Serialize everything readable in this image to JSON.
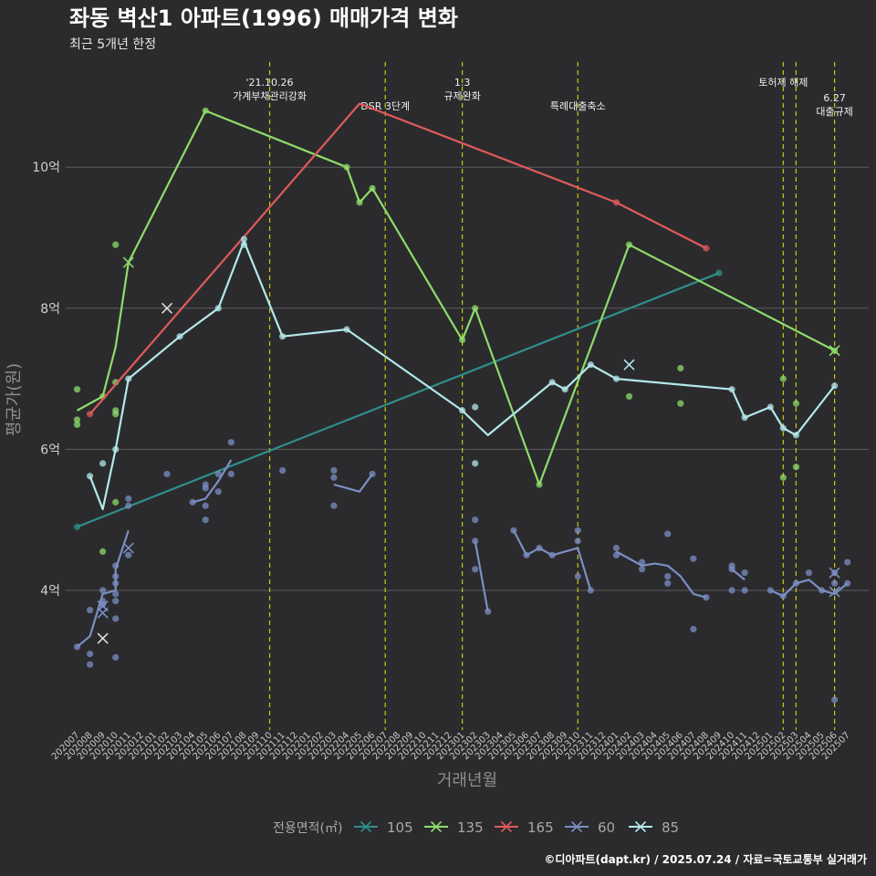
{
  "chart_data": {
    "type": "line",
    "title": "좌동 벽산1 아파트(1996) 매매가격 변화",
    "subtitle": "최근 5개년 한정",
    "xlabel": "거래년월",
    "ylabel": "평균가(원)",
    "caption": "©디아파트(dapt.kr) / 2025.07.24 / 자료=국토교통부 실거래가",
    "legend_title": "전용면적(㎡)",
    "legend_position": "bottom",
    "grid": true,
    "ylim": [
      2.0,
      11.5
    ],
    "yticks": [
      4,
      6,
      8,
      10
    ],
    "ytick_labels": [
      "4억",
      "6억",
      "8억",
      "10억"
    ],
    "categories": [
      "202007",
      "202008",
      "202009",
      "202010",
      "202011",
      "202012",
      "202101",
      "202102",
      "202103",
      "202104",
      "202105",
      "202106",
      "202107",
      "202108",
      "202109",
      "202110",
      "202111",
      "202112",
      "202201",
      "202202",
      "202203",
      "202204",
      "202205",
      "202206",
      "202207",
      "202208",
      "202209",
      "202210",
      "202211",
      "202212",
      "202301",
      "202302",
      "202303",
      "202304",
      "202305",
      "202306",
      "202307",
      "202308",
      "202309",
      "202310",
      "202311",
      "202312",
      "202401",
      "202402",
      "202403",
      "202404",
      "202405",
      "202406",
      "202407",
      "202408",
      "202409",
      "202410",
      "202411",
      "202412",
      "202501",
      "202502",
      "202503",
      "202504",
      "202505",
      "202506",
      "202507"
    ],
    "events": [
      {
        "x": "202110",
        "label": [
          "'21.10.26",
          "가계부채관리강화"
        ],
        "row": 0
      },
      {
        "x": "202207",
        "label": [
          "DSR 3단계"
        ],
        "row": 1
      },
      {
        "x": "202301",
        "label": [
          "1.3",
          "규제완화"
        ],
        "row": 0
      },
      {
        "x": "202310",
        "label": [
          "특례대출축소"
        ],
        "row": 1
      },
      {
        "x": "202502",
        "label": [
          "토허제 해제"
        ],
        "row": 0
      },
      {
        "x": "202503",
        "label": [],
        "row": 0
      },
      {
        "x": "202506",
        "label": [
          "6.27",
          "대출규제"
        ],
        "row": 2
      }
    ],
    "series": [
      {
        "name": "105",
        "color": "#2f8f8a",
        "line": [
          [
            "202007",
            4.9
          ],
          [
            "202409",
            8.5
          ]
        ],
        "points": [
          [
            "202007",
            4.9
          ],
          [
            "202409",
            8.5
          ]
        ],
        "crosses": []
      },
      {
        "name": "135",
        "color": "#8fdc6a",
        "line": [
          [
            "202007",
            6.55
          ],
          [
            "202009",
            6.75
          ],
          [
            "202010",
            7.45
          ],
          [
            "202011",
            8.65
          ],
          [
            "202105",
            10.8
          ],
          [
            "202204",
            10.0
          ],
          [
            "202205",
            9.5
          ],
          [
            "202206",
            9.7
          ],
          [
            "202301",
            7.55
          ],
          [
            "202302",
            8.0
          ],
          [
            "202307",
            5.5
          ],
          [
            "202402",
            8.9
          ],
          [
            "202506",
            7.4
          ]
        ],
        "points": [
          [
            "202007",
            6.85
          ],
          [
            "202007",
            6.42
          ],
          [
            "202007",
            6.35
          ],
          [
            "202009",
            6.75
          ],
          [
            "202010",
            8.9
          ],
          [
            "202010",
            6.95
          ],
          [
            "202010",
            6.55
          ],
          [
            "202010",
            6.5
          ],
          [
            "202009",
            4.55
          ],
          [
            "202105",
            10.8
          ],
          [
            "202204",
            10.0
          ],
          [
            "202205",
            9.5
          ],
          [
            "202206",
            9.7
          ],
          [
            "202301",
            7.55
          ],
          [
            "202302",
            8.0
          ],
          [
            "202307",
            5.5
          ],
          [
            "202402",
            8.9
          ],
          [
            "202402",
            6.75
          ],
          [
            "202406",
            7.15
          ],
          [
            "202406",
            6.65
          ],
          [
            "202502",
            7.0
          ],
          [
            "202502",
            5.6
          ],
          [
            "202503",
            6.65
          ],
          [
            "202503",
            5.75
          ],
          [
            "202506",
            7.4
          ],
          [
            "202010",
            5.25
          ]
        ],
        "crosses": [
          [
            "202011",
            8.65
          ],
          [
            "202506",
            7.4
          ]
        ]
      },
      {
        "name": "165",
        "color": "#e05a5a",
        "line": [
          [
            "202008",
            6.5
          ],
          [
            "202205",
            10.9
          ],
          [
            "202401",
            9.5
          ],
          [
            "202408",
            8.85
          ]
        ],
        "points": [
          [
            "202008",
            6.5
          ],
          [
            "202401",
            9.5
          ],
          [
            "202408",
            8.85
          ]
        ],
        "crosses": []
      },
      {
        "name": "60",
        "color": "#7b8fc4",
        "segments": [
          [
            [
              "202007",
              3.2
            ],
            [
              "202008",
              3.35
            ],
            [
              "202009",
              3.95
            ],
            [
              "202010",
              4.0
            ],
            [
              "202010",
              4.3
            ],
            [
              "202011",
              4.85
            ]
          ],
          [
            [
              "202104",
              5.25
            ],
            [
              "202105",
              5.3
            ],
            [
              "202106",
              5.55
            ],
            [
              "202107",
              5.85
            ]
          ],
          [
            [
              "202203",
              5.5
            ],
            [
              "202205",
              5.4
            ],
            [
              "202206",
              5.65
            ]
          ],
          [
            [
              "202302",
              4.7
            ],
            [
              "202303",
              3.7
            ]
          ],
          [
            [
              "202305",
              4.85
            ],
            [
              "202306",
              4.5
            ],
            [
              "202307",
              4.6
            ],
            [
              "202308",
              4.5
            ],
            [
              "202310",
              4.6
            ],
            [
              "202311",
              4.0
            ]
          ],
          [
            [
              "202401",
              4.55
            ],
            [
              "202403",
              4.35
            ],
            [
              "202404",
              4.38
            ],
            [
              "202405",
              4.35
            ],
            [
              "202406",
              4.2
            ],
            [
              "202407",
              3.95
            ],
            [
              "202408",
              3.9
            ]
          ],
          [
            [
              "202410",
              4.3
            ],
            [
              "202411",
              4.15
            ]
          ],
          [
            [
              "202501",
              4.0
            ],
            [
              "202502",
              3.92
            ],
            [
              "202503",
              4.1
            ],
            [
              "202504",
              4.15
            ],
            [
              "202505",
              4.0
            ],
            [
              "202506",
              3.95
            ],
            [
              "202507",
              4.1
            ]
          ]
        ],
        "points": [
          [
            "202007",
            3.2
          ],
          [
            "202008",
            3.1
          ],
          [
            "202008",
            2.95
          ],
          [
            "202008",
            3.72
          ],
          [
            "202009",
            3.8
          ],
          [
            "202009",
            3.85
          ],
          [
            "202009",
            4.0
          ],
          [
            "202010",
            4.35
          ],
          [
            "202010",
            4.2
          ],
          [
            "202010",
            4.1
          ],
          [
            "202010",
            3.95
          ],
          [
            "202010",
            3.85
          ],
          [
            "202010",
            3.6
          ],
          [
            "202010",
            3.05
          ],
          [
            "202011",
            4.5
          ],
          [
            "202011",
            5.3
          ],
          [
            "202011",
            5.2
          ],
          [
            "202102",
            5.65
          ],
          [
            "202104",
            5.25
          ],
          [
            "202105",
            5.45
          ],
          [
            "202105",
            5.5
          ],
          [
            "202105",
            5.2
          ],
          [
            "202105",
            5.0
          ],
          [
            "202106",
            5.65
          ],
          [
            "202106",
            5.4
          ],
          [
            "202107",
            6.1
          ],
          [
            "202107",
            5.65
          ],
          [
            "202111",
            5.7
          ],
          [
            "202203",
            5.7
          ],
          [
            "202203",
            5.6
          ],
          [
            "202203",
            5.2
          ],
          [
            "202206",
            5.65
          ],
          [
            "202302",
            5.0
          ],
          [
            "202302",
            4.7
          ],
          [
            "202302",
            4.3
          ],
          [
            "202303",
            3.7
          ],
          [
            "202305",
            4.85
          ],
          [
            "202306",
            4.5
          ],
          [
            "202307",
            4.6
          ],
          [
            "202308",
            4.5
          ],
          [
            "202310",
            4.85
          ],
          [
            "202310",
            4.7
          ],
          [
            "202310",
            4.2
          ],
          [
            "202311",
            4.0
          ],
          [
            "202401",
            4.6
          ],
          [
            "202401",
            4.5
          ],
          [
            "202403",
            4.4
          ],
          [
            "202403",
            4.3
          ],
          [
            "202405",
            4.2
          ],
          [
            "202405",
            4.1
          ],
          [
            "202405",
            4.8
          ],
          [
            "202407",
            4.45
          ],
          [
            "202407",
            3.45
          ],
          [
            "202408",
            3.9
          ],
          [
            "202410",
            4.35
          ],
          [
            "202410",
            4.3
          ],
          [
            "202410",
            4.0
          ],
          [
            "202411",
            4.25
          ],
          [
            "202411",
            4.0
          ],
          [
            "202501",
            4.0
          ],
          [
            "202502",
            3.92
          ],
          [
            "202503",
            4.1
          ],
          [
            "202504",
            4.25
          ],
          [
            "202505",
            4.0
          ],
          [
            "202506",
            4.25
          ],
          [
            "202506",
            4.1
          ],
          [
            "202506",
            2.45
          ],
          [
            "202507",
            4.4
          ],
          [
            "202507",
            4.1
          ]
        ],
        "crosses": [
          [
            "202009",
            3.78
          ],
          [
            "202009",
            3.68
          ],
          [
            "202009",
            3.32
          ],
          [
            "202011",
            4.6
          ],
          [
            "202506",
            4.25
          ],
          [
            "202506",
            3.98
          ]
        ]
      },
      {
        "name": "85",
        "color": "#b3e8ea",
        "line": [
          [
            "202008",
            5.62
          ],
          [
            "202009",
            5.15
          ],
          [
            "202010",
            6.0
          ],
          [
            "202011",
            7.0
          ],
          [
            "202103",
            7.6
          ],
          [
            "202106",
            8.0
          ],
          [
            "202108",
            8.95
          ],
          [
            "202111",
            7.6
          ],
          [
            "202204",
            7.7
          ],
          [
            "202301",
            6.55
          ],
          [
            "202303",
            6.2
          ],
          [
            "202308",
            6.95
          ],
          [
            "202309",
            6.85
          ],
          [
            "202311",
            7.2
          ],
          [
            "202401",
            7.0
          ],
          [
            "202410",
            6.85
          ],
          [
            "202411",
            6.45
          ],
          [
            "202501",
            6.6
          ],
          [
            "202502",
            6.3
          ],
          [
            "202503",
            6.2
          ],
          [
            "202506",
            6.9
          ]
        ],
        "points": [
          [
            "202008",
            5.62
          ],
          [
            "202009",
            5.8
          ],
          [
            "202010",
            6.0
          ],
          [
            "202011",
            7.0
          ],
          [
            "202103",
            7.6
          ],
          [
            "202106",
            8.0
          ],
          [
            "202108",
            8.98
          ],
          [
            "202108",
            8.9
          ],
          [
            "202111",
            7.6
          ],
          [
            "202204",
            7.7
          ],
          [
            "202301",
            6.55
          ],
          [
            "202302",
            6.6
          ],
          [
            "202302",
            5.8
          ],
          [
            "202308",
            6.95
          ],
          [
            "202309",
            6.85
          ],
          [
            "202311",
            7.2
          ],
          [
            "202401",
            7.0
          ],
          [
            "202410",
            6.85
          ],
          [
            "202411",
            6.45
          ],
          [
            "202501",
            6.6
          ],
          [
            "202502",
            6.3
          ],
          [
            "202503",
            6.2
          ],
          [
            "202506",
            6.9
          ]
        ],
        "crosses": [
          [
            "202102",
            8.0
          ],
          [
            "202402",
            7.2
          ]
        ]
      }
    ]
  }
}
